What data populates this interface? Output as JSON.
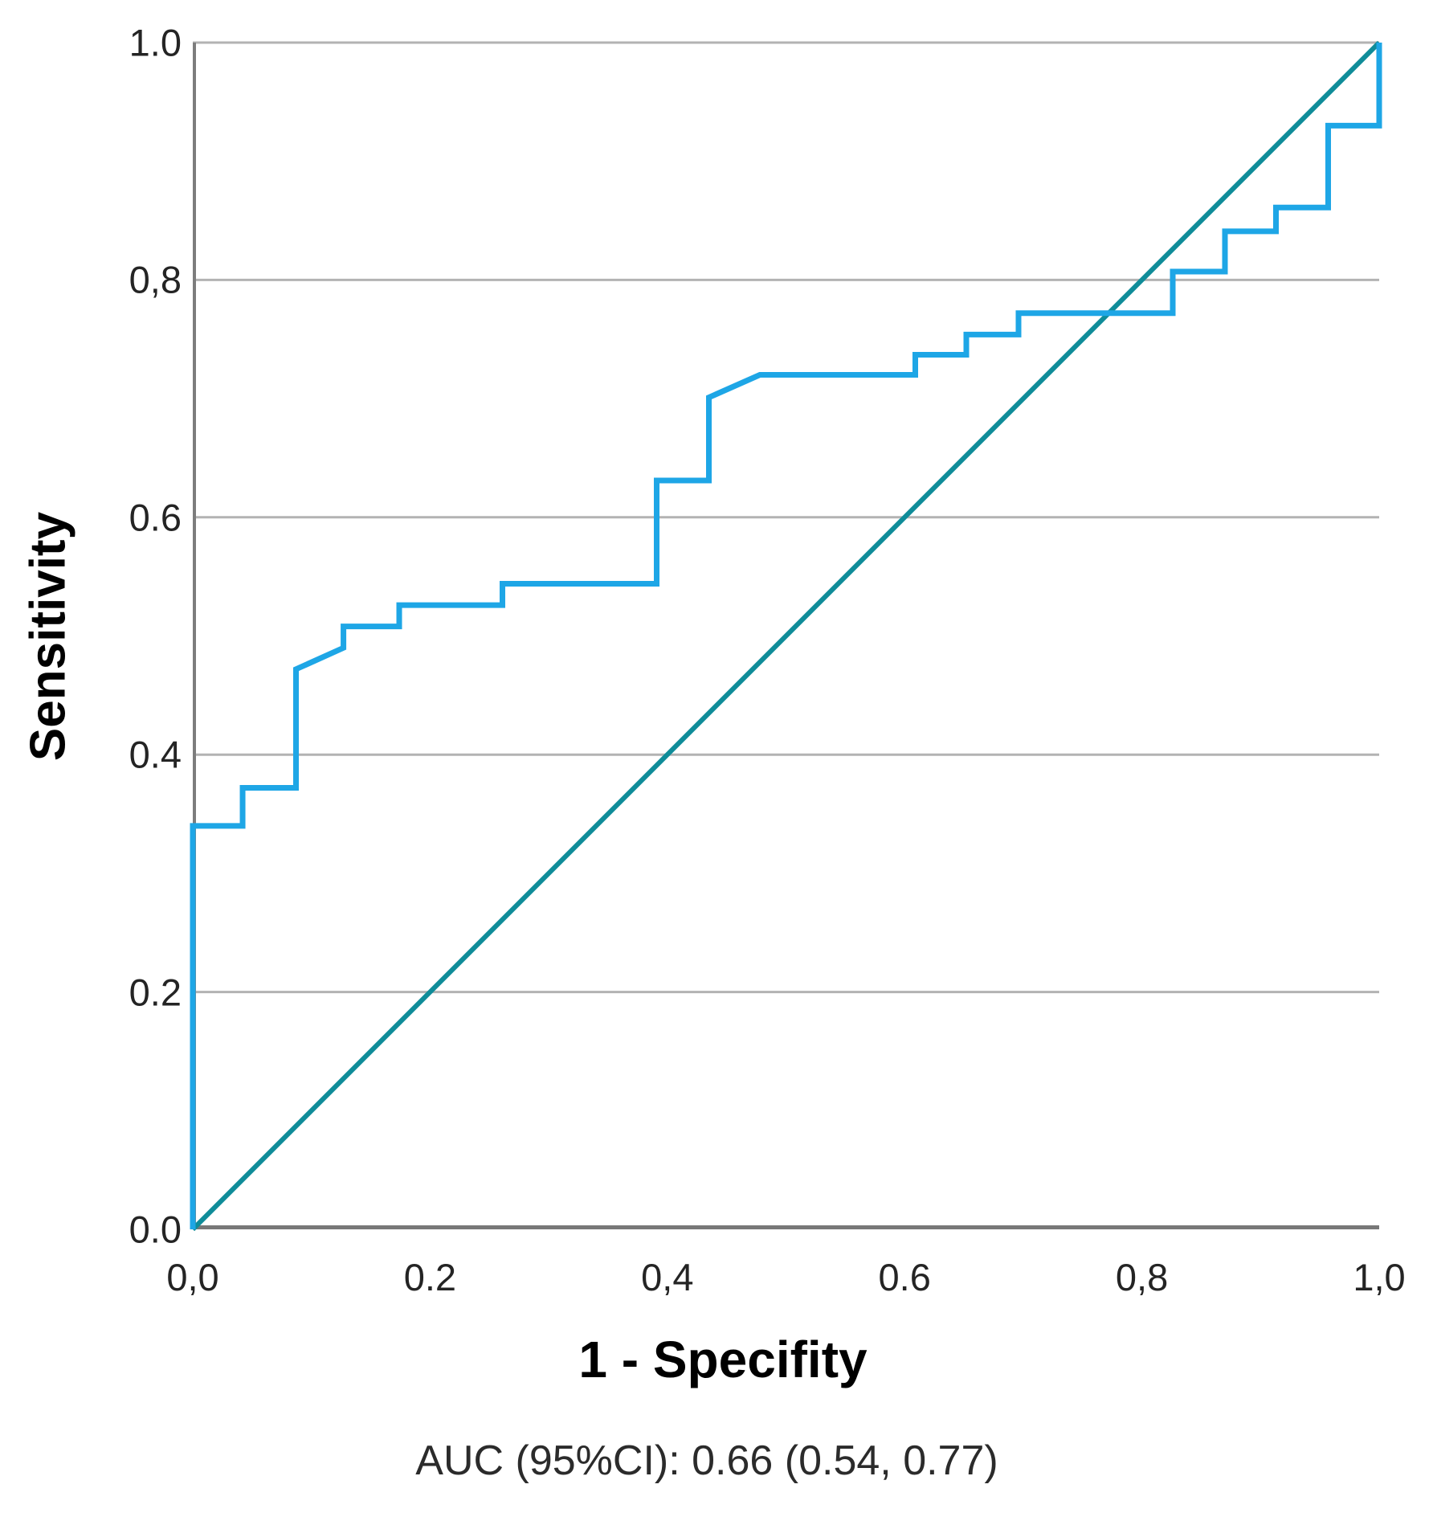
{
  "y_axis_title": "Sensitivity",
  "x_axis_title": "1 - Specifity",
  "caption": "AUC (95%CI): 0.66 (0.54, 0.77)",
  "chart_data": {
    "type": "line",
    "subtype": "roc-curve",
    "title": "",
    "xlabel": "1 - Specifity",
    "ylabel": "Sensitivity",
    "xlim": [
      0,
      1
    ],
    "ylim": [
      0,
      1
    ],
    "grid": "horizontal-only",
    "legend": "none",
    "auc": 0.66,
    "auc_ci_low": 0.54,
    "auc_ci_high": 0.77,
    "x_ticks": [
      {
        "value": 0.0,
        "label": "0,0"
      },
      {
        "value": 0.2,
        "label": "0.2"
      },
      {
        "value": 0.4,
        "label": "0,4"
      },
      {
        "value": 0.6,
        "label": "0.6"
      },
      {
        "value": 0.8,
        "label": "0,8"
      },
      {
        "value": 1.0,
        "label": "1,0"
      }
    ],
    "y_ticks": [
      {
        "value": 1.0,
        "label": "1.0"
      },
      {
        "value": 0.8,
        "label": "0,8"
      },
      {
        "value": 0.6,
        "label": "0.6"
      },
      {
        "value": 0.4,
        "label": "0.4"
      },
      {
        "value": 0.2,
        "label": "0.2"
      },
      {
        "value": 0.0,
        "label": "0.0"
      }
    ],
    "series": [
      {
        "name": "reference-diagonal",
        "color": "#0f8c99",
        "width": 6,
        "points": [
          [
            0,
            0
          ],
          [
            1,
            1
          ]
        ]
      },
      {
        "name": "roc-curve",
        "color": "#1ea6e6",
        "width": 7,
        "points": [
          [
            0,
            0
          ],
          [
            0,
            0.34
          ],
          [
            0.042,
            0.34
          ],
          [
            0.042,
            0.372
          ],
          [
            0.087,
            0.372
          ],
          [
            0.087,
            0.472
          ],
          [
            0.127,
            0.49
          ],
          [
            0.127,
            0.508
          ],
          [
            0.174,
            0.508
          ],
          [
            0.174,
            0.526
          ],
          [
            0.261,
            0.526
          ],
          [
            0.261,
            0.544
          ],
          [
            0.391,
            0.544
          ],
          [
            0.391,
            0.631
          ],
          [
            0.435,
            0.631
          ],
          [
            0.435,
            0.701
          ],
          [
            0.478,
            0.72
          ],
          [
            0.609,
            0.72
          ],
          [
            0.609,
            0.737
          ],
          [
            0.652,
            0.737
          ],
          [
            0.652,
            0.754
          ],
          [
            0.696,
            0.754
          ],
          [
            0.696,
            0.772
          ],
          [
            0.826,
            0.772
          ],
          [
            0.826,
            0.807
          ],
          [
            0.87,
            0.807
          ],
          [
            0.87,
            0.841
          ],
          [
            0.913,
            0.841
          ],
          [
            0.913,
            0.861
          ],
          [
            0.957,
            0.861
          ],
          [
            0.957,
            0.93
          ],
          [
            1.0,
            0.93
          ],
          [
            1.0,
            1.0
          ]
        ]
      }
    ],
    "colors": {
      "grid": "#b3b3b3",
      "axis": "#7d7d7d",
      "tick_text": "#242424",
      "background": "#ffffff"
    }
  }
}
